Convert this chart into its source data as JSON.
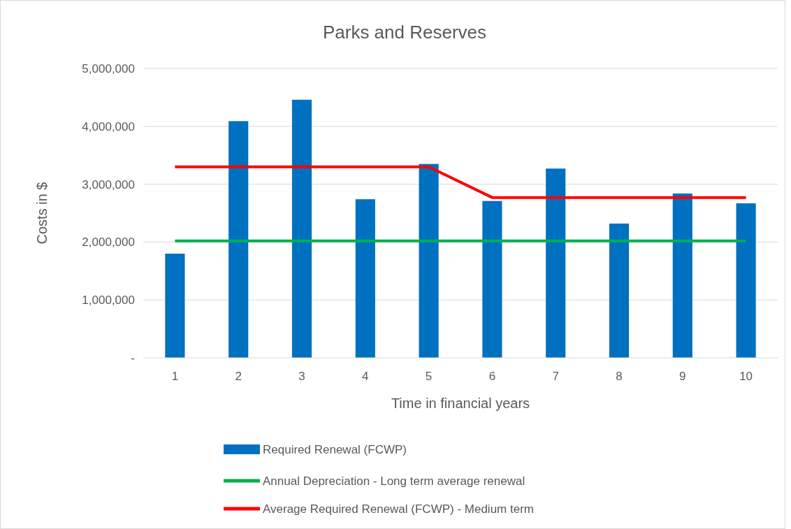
{
  "chart_data": {
    "type": "bar",
    "title": "Parks and Reserves",
    "xlabel": "Time in financial years",
    "ylabel": "Costs in $",
    "categories": [
      "1",
      "2",
      "3",
      "4",
      "5",
      "6",
      "7",
      "8",
      "9",
      "10"
    ],
    "series": [
      {
        "name": "Required Renewal (FCWP)",
        "color": "#0070c0",
        "values": [
          1800000,
          4090000,
          4460000,
          2740000,
          3350000,
          2710000,
          3270000,
          2320000,
          2840000,
          2670000
        ]
      },
      {
        "name": "Annual Depreciation - Long term average renewal",
        "type": "line",
        "color": "#00b050",
        "values": [
          2020000,
          2020000,
          2020000,
          2020000,
          2020000,
          2020000,
          2020000,
          2020000,
          2020000,
          2020000
        ]
      },
      {
        "name": "Average Required Renewal (FCWP) - Medium term",
        "type": "line",
        "color": "#ff0000",
        "values": [
          3300000,
          3300000,
          3300000,
          3300000,
          3300000,
          2770000,
          2770000,
          2770000,
          2770000,
          2770000
        ]
      }
    ],
    "ylim": [
      0,
      5000000
    ],
    "yticks": [
      {
        "value": 0,
        "label": "-"
      },
      {
        "value": 1000000,
        "label": "1,000,000"
      },
      {
        "value": 2000000,
        "label": "2,000,000"
      },
      {
        "value": 3000000,
        "label": "3,000,000"
      },
      {
        "value": 4000000,
        "label": "4,000,000"
      },
      {
        "value": 5000000,
        "label": "5,000,000"
      }
    ],
    "grid": "y",
    "legend": "bottom",
    "marker": "none",
    "line_style": "solid"
  }
}
